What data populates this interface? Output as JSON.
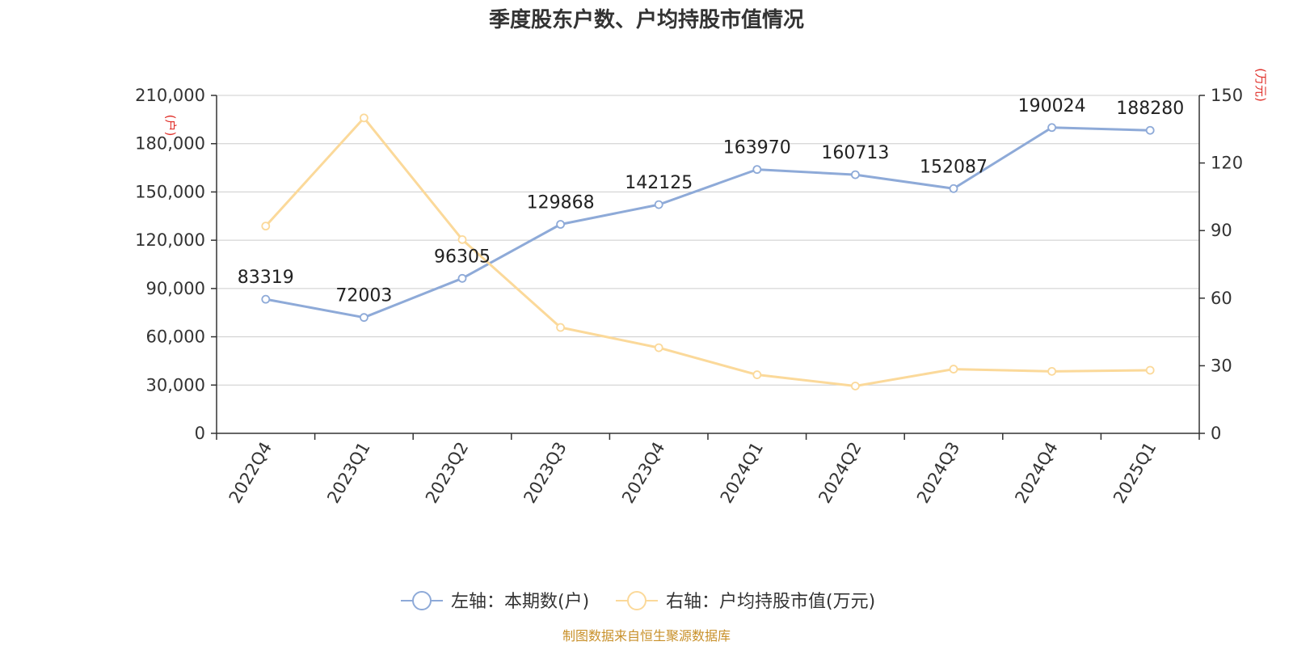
{
  "chart_data": {
    "type": "line",
    "title": "季度股东户数、户均持股市值情况",
    "categories": [
      "2022Q4",
      "2023Q1",
      "2023Q2",
      "2023Q3",
      "2023Q4",
      "2024Q1",
      "2024Q2",
      "2024Q3",
      "2024Q4",
      "2025Q1"
    ],
    "left_axis": {
      "unit_label": "(户)",
      "min": 0,
      "max": 210000,
      "ticks": [
        0,
        30000,
        60000,
        90000,
        120000,
        150000,
        180000,
        210000
      ],
      "tick_labels": [
        "0",
        "30,000",
        "60,000",
        "90,000",
        "120,000",
        "150,000",
        "180,000",
        "210,000"
      ]
    },
    "right_axis": {
      "unit_label": "(万元)",
      "min": 0,
      "max": 150,
      "ticks": [
        0,
        30,
        60,
        90,
        120,
        150
      ],
      "tick_labels": [
        "0",
        "30",
        "60",
        "90",
        "120",
        "150"
      ]
    },
    "series": [
      {
        "name": "左轴：本期数(户)",
        "axis": "left",
        "color": "#8eaad8",
        "values": [
          83319,
          72003,
          96305,
          129868,
          142125,
          163970,
          160713,
          152087,
          190024,
          188280
        ],
        "data_labels": [
          "83319",
          "72003",
          "96305",
          "129868",
          "142125",
          "163970",
          "160713",
          "152087",
          "190024",
          "188280"
        ]
      },
      {
        "name": "右轴：户均持股市值(万元)",
        "axis": "right",
        "color": "#fbd99a",
        "values": [
          92,
          140,
          86,
          47,
          38,
          26,
          21,
          28.5,
          27.5,
          28
        ]
      }
    ],
    "grid": true,
    "legend_position": "bottom-center",
    "source": "制图数据来自恒生聚源数据库",
    "colors": {
      "axis_unit": "#e0302a",
      "source_text": "#c8902a",
      "grid": "#cccccc",
      "axis_line": "#333333",
      "text": "#333333"
    }
  }
}
